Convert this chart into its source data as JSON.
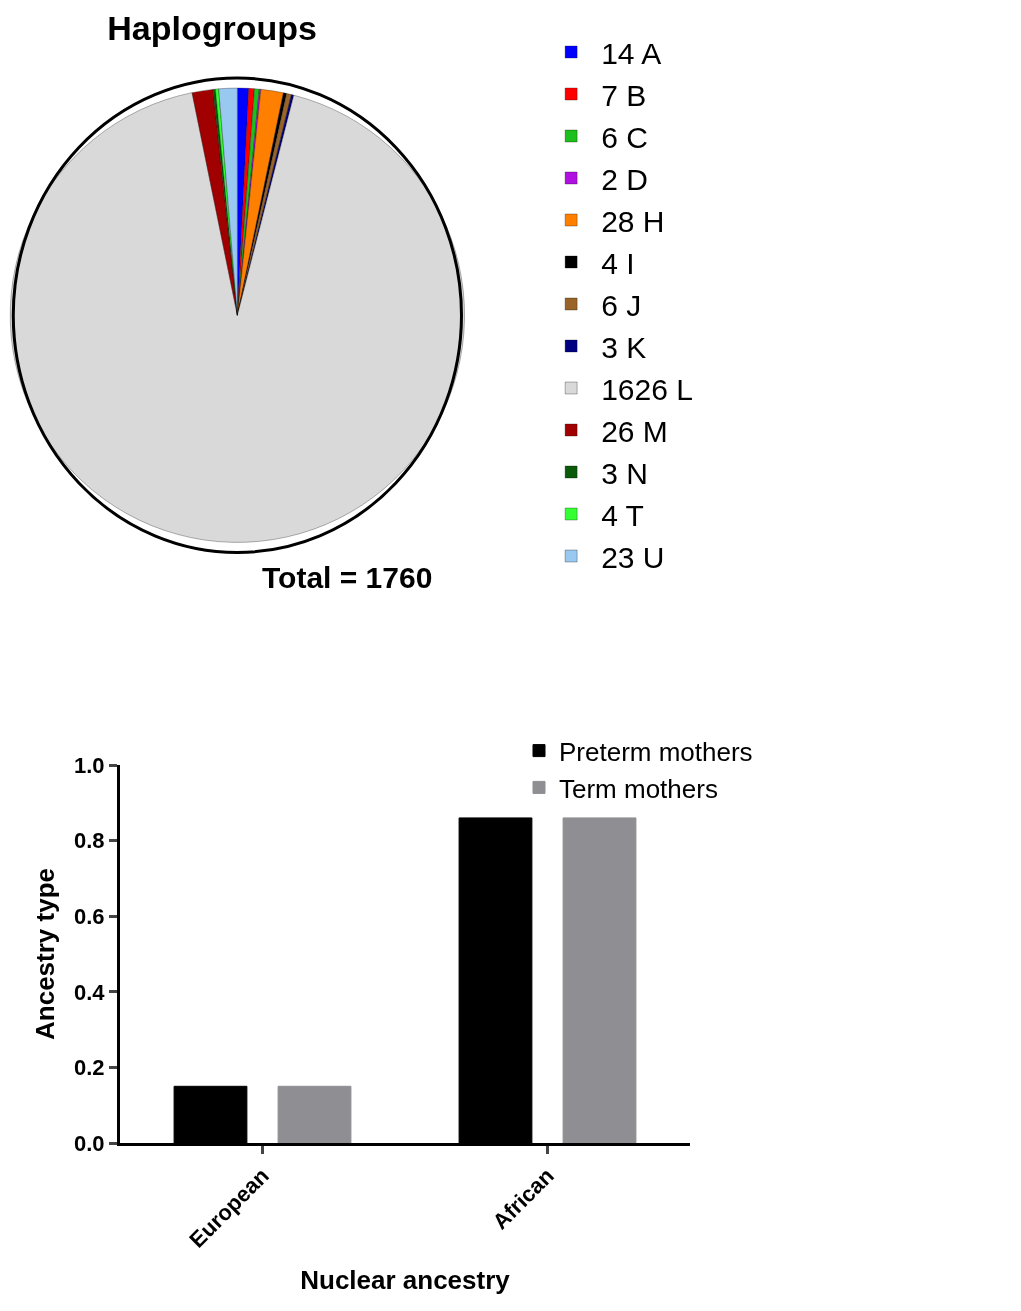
{
  "chart_data": [
    {
      "type": "pie",
      "title": "Haplogroups",
      "categories": [
        "14 A",
        "7 B",
        "6 C",
        "2 D",
        "28 H",
        "4 I",
        "6 J",
        "3 K",
        "1626 L",
        "26 M",
        "3 N",
        "4 T",
        "23 U"
      ],
      "values": [
        14,
        7,
        6,
        2,
        28,
        4,
        6,
        3,
        1626,
        26,
        3,
        4,
        23
      ],
      "colors": [
        "#0000ff",
        "#ff0000",
        "#1cbf1c",
        "#b010e0",
        "#ff8000",
        "#000000",
        "#9a6428",
        "#000080",
        "#d9d9d9",
        "#a00000",
        "#0a5a0a",
        "#33ff33",
        "#99c8f0"
      ],
      "legend": "right",
      "annotations": [
        "Total = 1760"
      ]
    },
    {
      "type": "bar",
      "categories": [
        "European",
        "African"
      ],
      "series": [
        {
          "name": "Preterm mothers",
          "color": "#000000",
          "values": [
            0.15,
            0.86
          ]
        },
        {
          "name": "Term mothers",
          "color": "#8e8e93",
          "values": [
            0.15,
            0.86
          ]
        }
      ],
      "xlabel": "Nuclear ancestry",
      "ylabel": "Ancestry type",
      "ylim": [
        0,
        1
      ],
      "yticks": [
        {
          "value": 0,
          "label": "0.0"
        },
        0.2,
        0.4,
        0.6,
        0.8,
        {
          "value": 1,
          "label": "1.0"
        }
      ],
      "legend": "top right"
    }
  ]
}
